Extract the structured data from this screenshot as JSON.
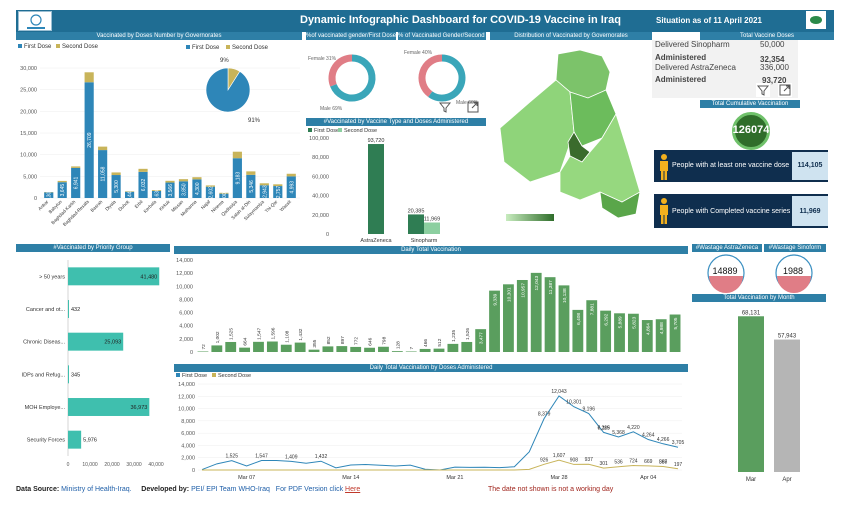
{
  "header": {
    "title": "Dynamic Infographic Dashboard for COVID-19 Vaccine in Iraq",
    "situation": "Situation as of 11 April 2021"
  },
  "panels": {
    "by_governorate": "Vaccinated by Doses Number by Governorates",
    "gender_first": "%of vaccinated gender/First Dose",
    "gender_second": "% of Vaccinated Gender/Second Dose",
    "map": "Distribution of Vaccinated by Governorates",
    "total_doses": "Total Vaccine Doses",
    "type_doses": "#Vaccinated by Vaccine Type and Doses Administered",
    "cumulative": "Total Cumulative Vaccination",
    "priority": "#Vaccinated by Priority Group",
    "daily_total": "Daily Total Vaccination",
    "daily_by_dose": "Daily Total Vaccination by Doses Administered",
    "pct_astra": "#Wastage AstraZeneca",
    "pct_sino": "#Wastage Sinoform",
    "by_month": "Total Vaccination by Month"
  },
  "legend": {
    "first": "First Dose",
    "second": "Second Dose"
  },
  "colors": {
    "first": "#2e86b8",
    "second": "#c8b45a",
    "header": "#2e7fa6",
    "teal": "#3fbfae",
    "green": "#5a9e5e",
    "darkgreen": "#2f7d53",
    "navy": "#0f2e4e",
    "gold": "#f2b01e",
    "pink": "#e07d86"
  },
  "kpis": {
    "delivered_sino_label": "Delivered Sinopharm",
    "delivered_sino_value": "50,000",
    "admin1_label": "Administered",
    "admin1_value": "32,354",
    "delivered_astra_label": "Delivered AstraZeneca",
    "delivered_astra_value": "336,000",
    "admin2_label": "Administered",
    "admin2_value": "93,720",
    "cumulative_value": "126074",
    "atleast_label": "People with at least one vaccine dose",
    "atleast_value": "114,105",
    "complete_label": "People with Completed vaccine series",
    "complete_value": "11,969",
    "wastage_astra": "14889",
    "wastage_sino": "1988"
  },
  "footer": {
    "source_label": "Data Source:",
    "source_value": "Ministry of Health-Iraq.",
    "dev_label": "Developed by:",
    "dev_value": "PEI/ EPI Team WHO-Iraq",
    "pdf_label": "For PDF Version click",
    "pdf_link": "Here",
    "note": "The date not shown is not a working day"
  },
  "chart_data": [
    {
      "id": "governorate",
      "type": "bar",
      "categories": [
        "Anbar",
        "Babylon",
        "Baghdad-Karkh",
        "Baghdad-Resafa",
        "Basrah",
        "Diyala",
        "Duhok",
        "Erbil",
        "Kerbala",
        "Kirkuk",
        "Missan",
        "Muthanna",
        "Najaf",
        "Ninewa",
        "Qadissiya",
        "Salah al-Din",
        "Sulaymaniya",
        "Thi-Qar",
        "Wassit"
      ],
      "series": [
        {
          "name": "First Dose",
          "values": [
            1303,
            3645,
            6941,
            26709,
            11058,
            5300,
            1440,
            6032,
            1630,
            3566,
            3850,
            4300,
            2602,
            1000,
            9183,
            5346,
            2943,
            2757,
            4993
          ]
        },
        {
          "name": "Second Dose",
          "values": [
            80,
            300,
            350,
            2300,
            800,
            600,
            120,
            700,
            200,
            400,
            500,
            500,
            300,
            200,
            1500,
            800,
            450,
            400,
            600
          ]
        }
      ],
      "ylim": [
        0,
        30000
      ],
      "yticks": [
        0,
        5000,
        10000,
        15000,
        20000,
        25000,
        30000
      ],
      "data_labels": [
        "1,303",
        "3,645",
        "6,941",
        "26,709",
        "11,058",
        "5,300",
        "1,440",
        "6,032",
        "1,630",
        "3,566",
        "3,850",
        "4,300",
        "2,602",
        "1,000",
        "9,183",
        "5,346",
        "2,943",
        "2,757",
        "4,993"
      ]
    },
    {
      "id": "dose_pie",
      "type": "pie",
      "labels": [
        "First Dose",
        "Second Dose"
      ],
      "values": [
        91,
        9
      ],
      "data_labels": [
        "91%",
        "9%"
      ]
    },
    {
      "id": "gender_first",
      "type": "pie",
      "labels": [
        "Female",
        "Male"
      ],
      "values": [
        31,
        69
      ],
      "data_labels": [
        "Female 31%",
        "Male 69%"
      ]
    },
    {
      "id": "gender_second",
      "type": "pie",
      "labels": [
        "Female",
        "Male"
      ],
      "values": [
        40,
        60
      ],
      "data_labels": [
        "Female 40%",
        "Male 60%"
      ]
    },
    {
      "id": "vaccine_type",
      "type": "bar",
      "categories": [
        "AstraZeneca",
        "Sinopharm"
      ],
      "series": [
        {
          "name": "First Dose",
          "values": [
            93720,
            20385
          ]
        },
        {
          "name": "Second Dose",
          "values": [
            0,
            11969
          ]
        }
      ],
      "ylim": [
        0,
        100000
      ],
      "yticks": [
        0,
        20000,
        40000,
        60000,
        80000,
        100000
      ],
      "data_labels": [
        "93,720",
        "20,385",
        "11,969"
      ]
    },
    {
      "id": "priority",
      "type": "bar",
      "orientation": "horizontal",
      "categories": [
        "> 50 years",
        "Cancer and ot...",
        "Chronic Diseas...",
        "IDPs and Refug...",
        "MOH Employe...",
        "Security Forces"
      ],
      "values": [
        41480,
        432,
        25093,
        345,
        36973,
        5976
      ],
      "data_labels": [
        "41,480",
        "432",
        "25,093",
        "345",
        "36,973",
        "5,976"
      ],
      "xlim": [
        0,
        40000
      ],
      "xticks": [
        0,
        10000,
        20000,
        30000,
        40000
      ]
    },
    {
      "id": "daily_total",
      "type": "bar",
      "values": [
        72,
        1002,
        1525,
        664,
        1547,
        1596,
        1108,
        1432,
        355,
        852,
        897,
        772,
        646,
        798,
        128,
        7,
        466,
        512,
        1235,
        1526,
        3477,
        9339,
        10301,
        10957,
        12043,
        11387,
        10138,
        6408,
        7881,
        6292,
        5889,
        5823,
        4864,
        4988,
        5705
      ],
      "data_labels": [
        "72",
        "1,002",
        "1,525",
        "664",
        "1,547",
        "1,596",
        "1,108",
        "1,432",
        "355",
        "852",
        "897",
        "772",
        "646",
        "798",
        "128",
        "7",
        "466",
        "512",
        "1,235",
        "1,526",
        "3,477",
        "9,339",
        "10,301",
        "10,957",
        "12,043",
        "11,387",
        "10,138",
        "6,408",
        "7,881",
        "6,292",
        "5,889",
        "5,823",
        "4,864",
        "4,988",
        "5,705"
      ],
      "ylim": [
        0,
        14000
      ],
      "yticks": [
        0,
        2000,
        4000,
        6000,
        8000,
        10000,
        12000,
        14000
      ]
    },
    {
      "id": "daily_by_dose",
      "type": "line",
      "x_ticks": [
        "Mar 07",
        "Mar 14",
        "Mar 21",
        "Mar 28",
        "Apr 04"
      ],
      "series": [
        {
          "name": "First Dose",
          "values": [
            72,
            1002,
            1525,
            654,
            1547,
            1545,
            1409,
            1108,
            1432,
            355,
            812,
            897,
            772,
            646,
            798,
            128,
            7,
            466,
            431,
            448,
            383,
            526,
            2961,
            8379,
            12043,
            10301,
            9196,
            6119,
            5368,
            6220,
            4964,
            4266,
            3705
          ]
        },
        {
          "name": "Second Dose",
          "values": [
            0,
            0,
            0,
            0,
            0,
            0,
            0,
            0,
            0,
            0,
            0,
            0,
            0,
            0,
            0,
            0,
            0,
            0,
            0,
            0,
            0,
            0,
            100,
            926,
            1607,
            908,
            937,
            301,
            536,
            724,
            669,
            567,
            197
          ]
        }
      ],
      "data_labels_first": [
        "1,525",
        "1,547",
        "1,409",
        "1,432",
        "8,379",
        "12,043",
        "10,301",
        "9,196",
        "7,285",
        "6,119",
        "5,368",
        "4,220",
        "4,264",
        "4,266",
        "3,705"
      ],
      "data_labels_second": [
        "1,607",
        "926",
        "908",
        "937",
        "301",
        "536",
        "724",
        "669",
        "567",
        "385",
        "197"
      ],
      "ylim": [
        0,
        14000
      ],
      "yticks": [
        0,
        2000,
        4000,
        6000,
        8000,
        10000,
        12000,
        14000
      ]
    },
    {
      "id": "by_month",
      "type": "bar",
      "categories": [
        "Mar",
        "Apr"
      ],
      "values": [
        68131,
        57943
      ],
      "data_labels": [
        "68,131",
        "57,943"
      ]
    }
  ]
}
